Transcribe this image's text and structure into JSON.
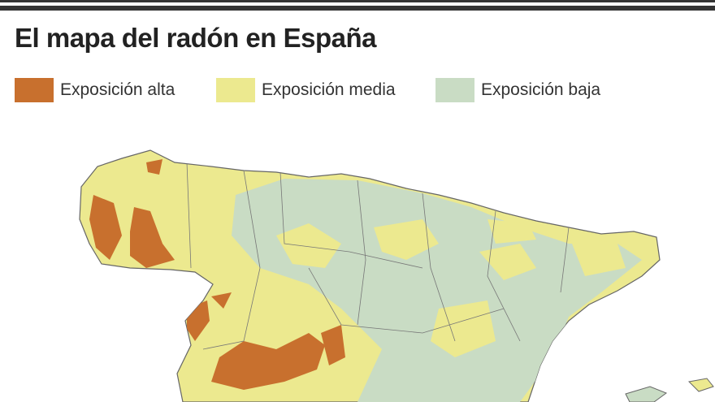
{
  "header": {
    "title": "El mapa del radón en España"
  },
  "legend": {
    "items": [
      {
        "label": "Exposición alta"
      },
      {
        "label": "Exposición media"
      },
      {
        "label": "Exposición baja"
      }
    ]
  }
}
